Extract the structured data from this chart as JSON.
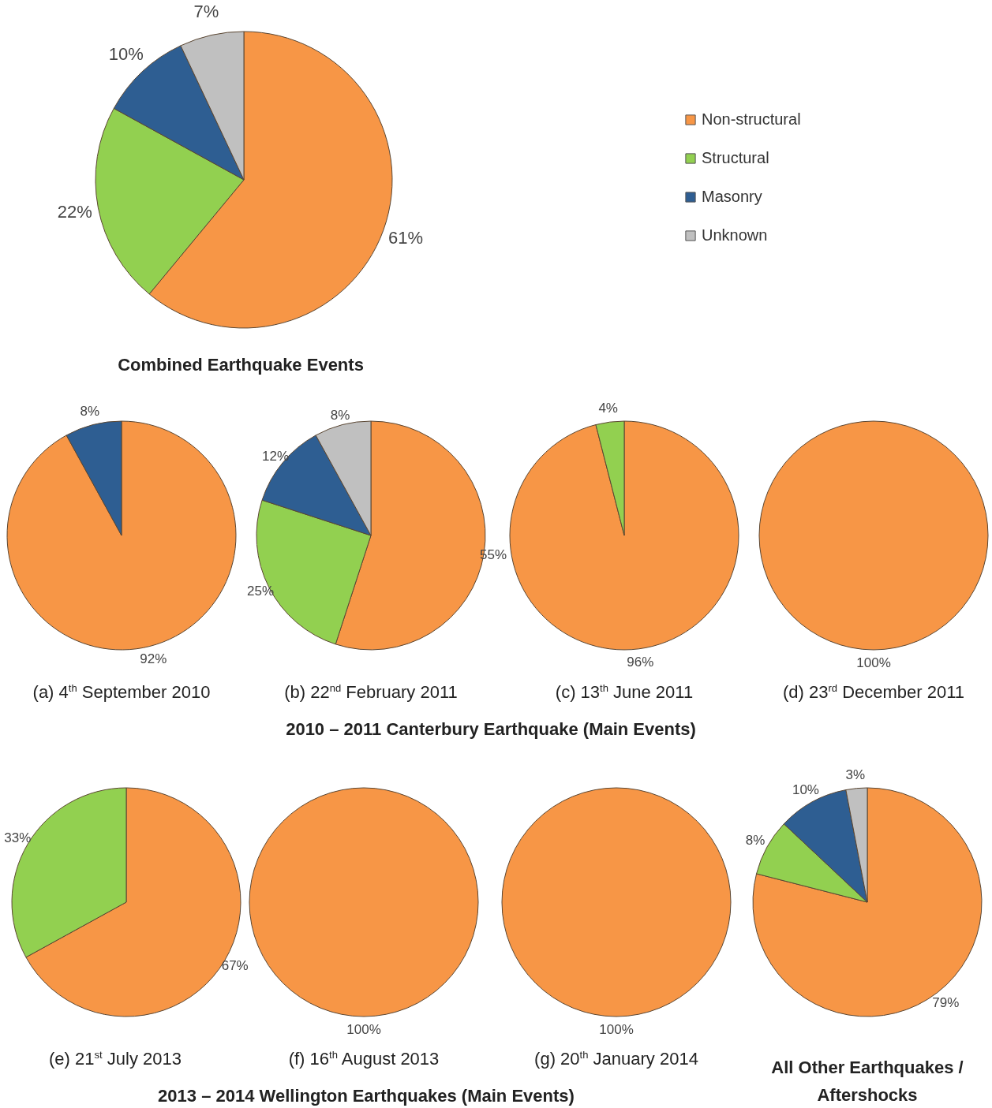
{
  "chart_data": [
    {
      "type": "pie",
      "title": "Combined Earthquake Events",
      "categories": [
        "Non-structural",
        "Structural",
        "Masonry",
        "Unknown"
      ],
      "values": [
        61,
        22,
        10,
        7
      ],
      "colors": [
        "#f79646",
        "#92d050",
        "#2e5e92",
        "#c0c0c0"
      ],
      "value_labels": [
        "61%",
        "22%",
        "10%",
        "7%"
      ],
      "legend": "right"
    },
    {
      "type": "pie",
      "title": "(a) 4$^{th}$ September 2010",
      "categories": [
        null,
        null
      ],
      "values": [
        92,
        8
      ],
      "colors": [
        "#f79646",
        "#2e5e92"
      ],
      "value_labels": [
        "92%",
        "8%"
      ],
      "annotations": [
        "2010 – 2011 Canterbury Earthquake (Main Events)"
      ]
    },
    {
      "type": "pie",
      "title": "(b) 22$^{nd}$ February 2011",
      "categories": [
        null,
        null,
        null,
        null
      ],
      "values": [
        55,
        25,
        12,
        8
      ],
      "colors": [
        "#f79646",
        "#92d050",
        "#2e5e92",
        "#c0c0c0"
      ],
      "value_labels": [
        "55%",
        "25%",
        "12%",
        "8%"
      ]
    },
    {
      "type": "pie",
      "title": "(c) 13$^{th}$ June 2011",
      "categories": [
        null,
        null
      ],
      "values": [
        96,
        4
      ],
      "colors": [
        "#f79646",
        "#92d050"
      ],
      "value_labels": [
        "96%",
        "4%"
      ]
    },
    {
      "type": "pie",
      "title": "(d) 23$^{rd}$ December 2011",
      "categories": [
        null
      ],
      "values": [
        100
      ],
      "colors": [
        "#f79646"
      ],
      "value_labels": [
        "100%"
      ]
    },
    {
      "type": "pie",
      "title": "(e) 21$^{st}$ July 2013",
      "categories": [
        null,
        null
      ],
      "values": [
        67,
        33
      ],
      "colors": [
        "#f79646",
        "#92d050"
      ],
      "value_labels": [
        "67%",
        "33%"
      ],
      "annotations": [
        "2013 – 2014 Wellington Earthquakes (Main Events)"
      ]
    },
    {
      "type": "pie",
      "title": "(f) 16$^{th}$ August 2013",
      "categories": [
        null
      ],
      "values": [
        100
      ],
      "colors": [
        "#f79646"
      ],
      "value_labels": [
        "100%"
      ]
    },
    {
      "type": "pie",
      "title": "(g) 20$^{th}$ January 2014",
      "categories": [
        null
      ],
      "values": [
        100
      ],
      "colors": [
        "#f79646"
      ],
      "value_labels": [
        "100%"
      ]
    },
    {
      "type": "pie",
      "title": "All Other Earthquakes / Aftershocks",
      "categories": [
        null,
        null,
        null,
        null
      ],
      "values": [
        79,
        8,
        10,
        3
      ],
      "colors": [
        "#f79646",
        "#92d050",
        "#2e5e92",
        "#c0c0c0"
      ],
      "value_labels": [
        "79%",
        "8%",
        "10%",
        "3%"
      ]
    }
  ]
}
